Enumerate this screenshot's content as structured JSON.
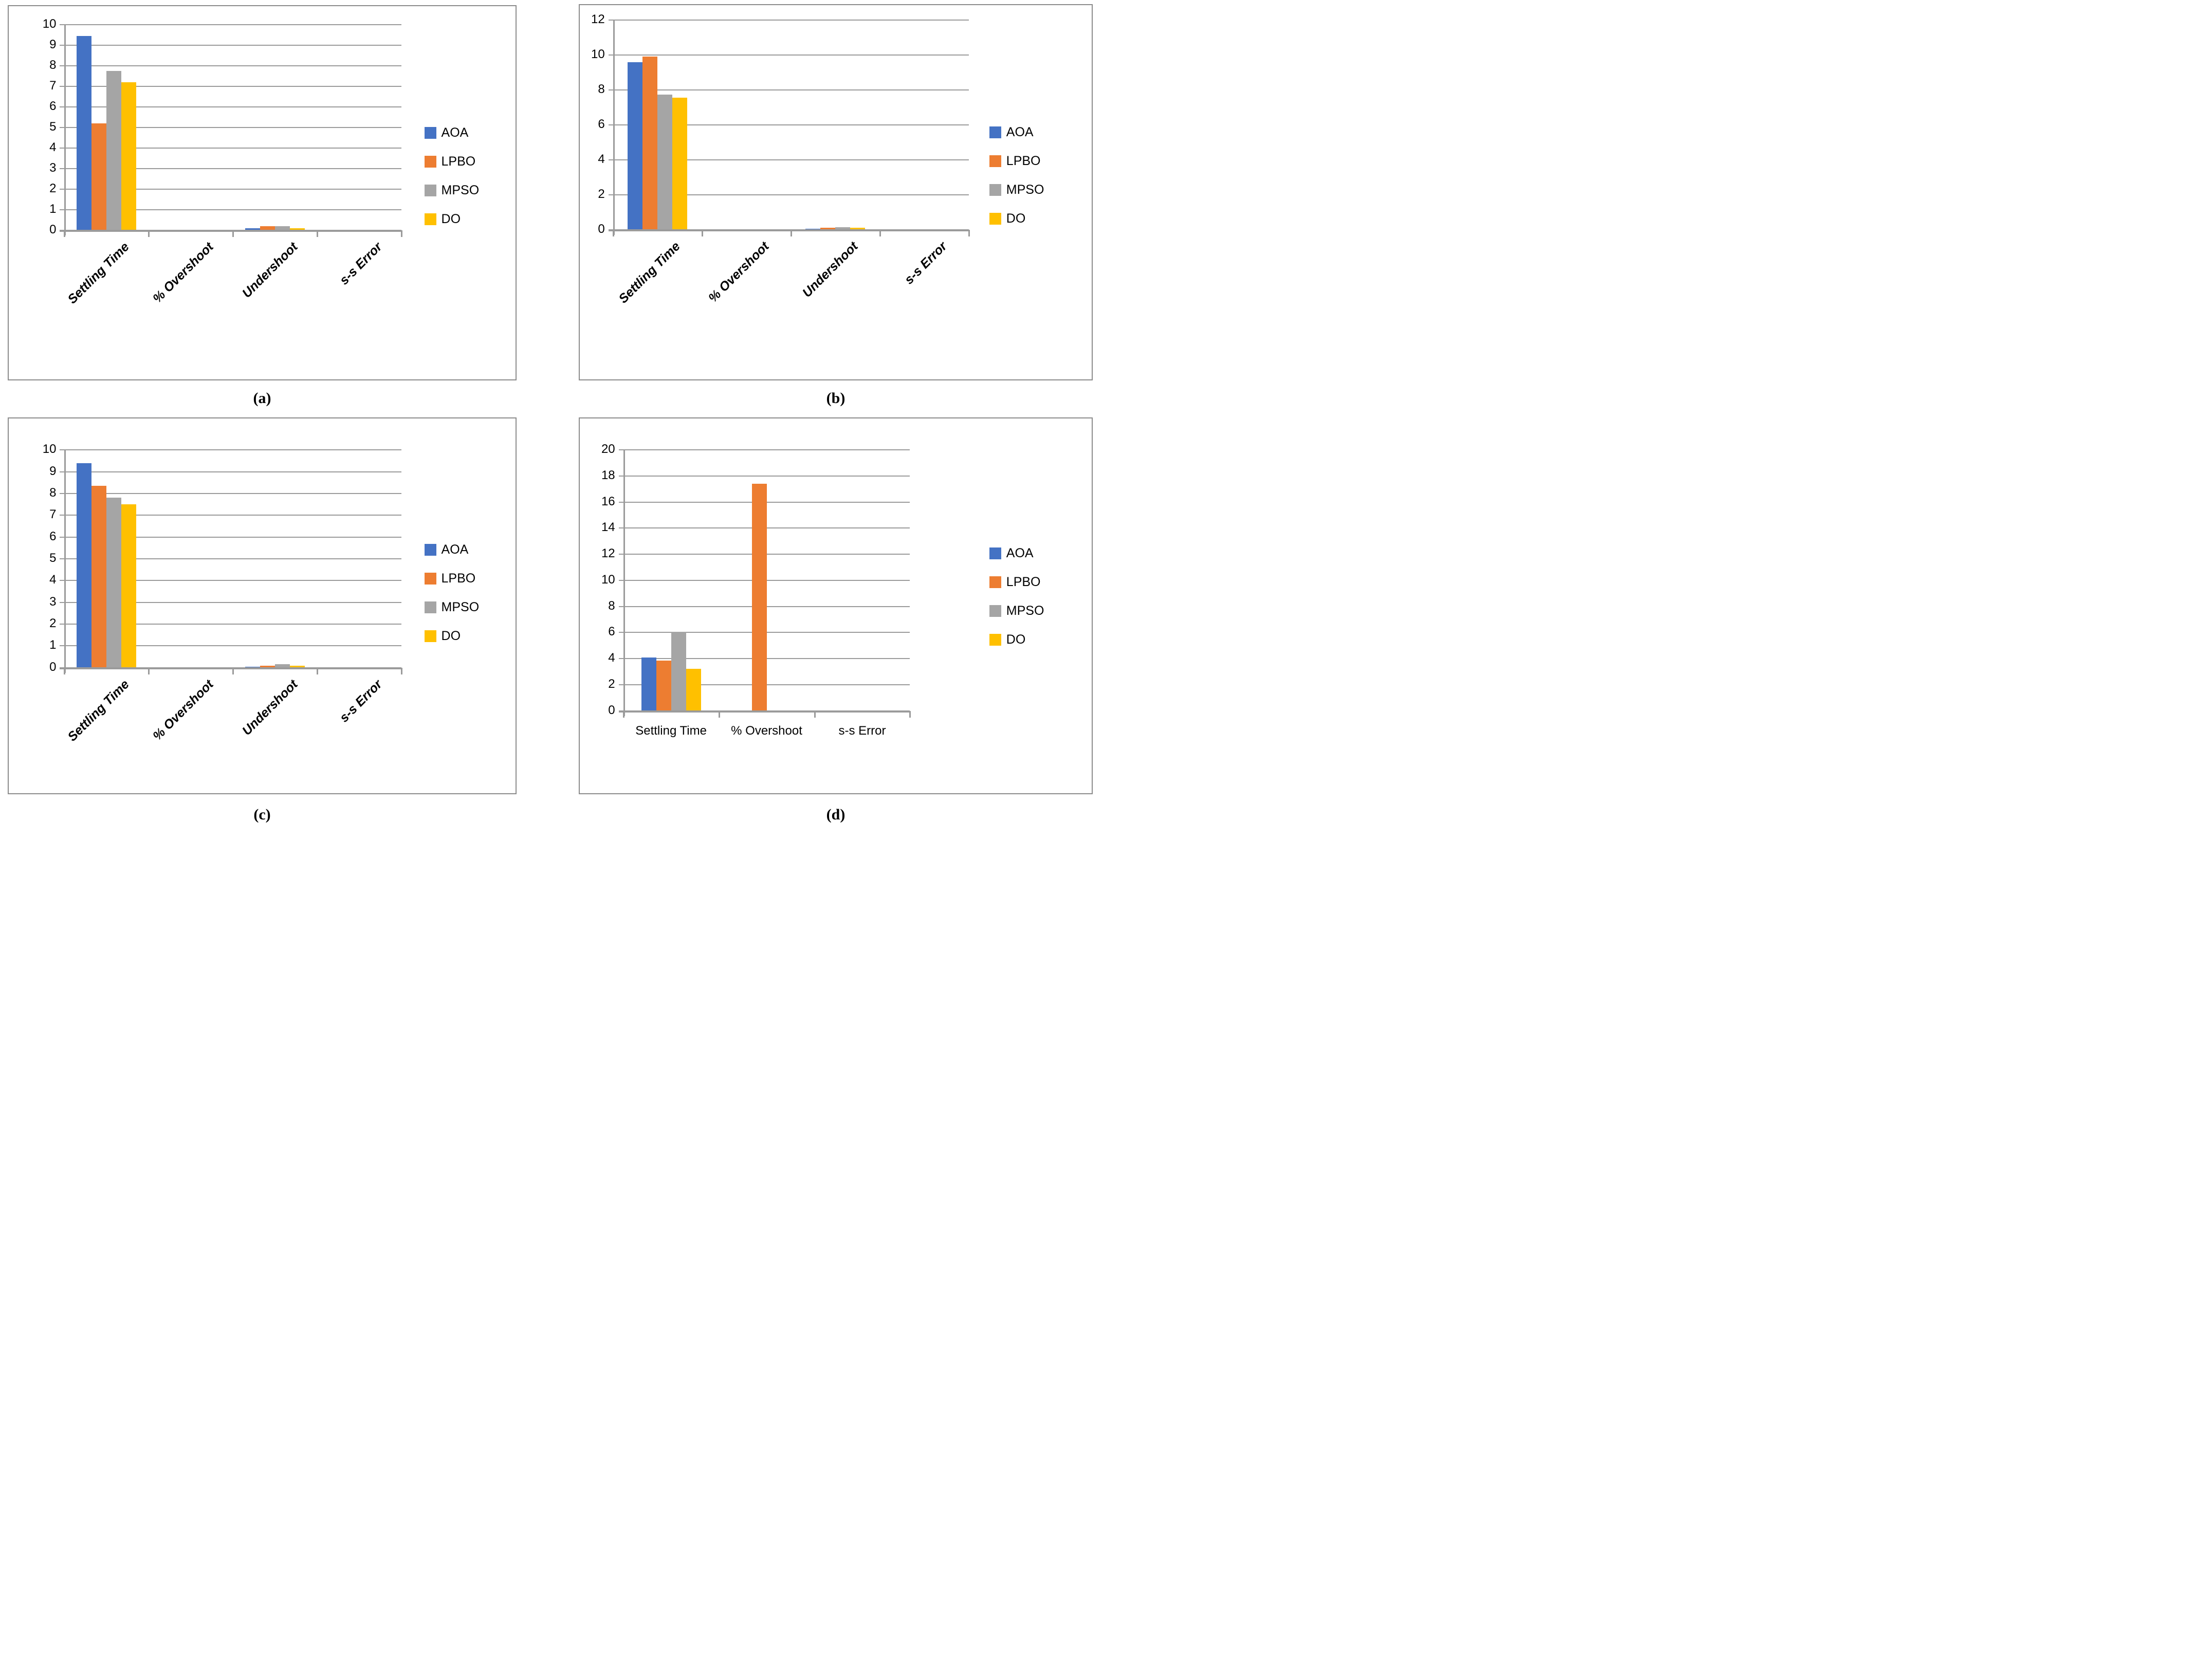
{
  "legend": [
    "AOA",
    "LPBO",
    "MPSO",
    "DO"
  ],
  "colors": {
    "AOA": "#4472C4",
    "LPBO": "#ED7D31",
    "MPSO": "#A5A5A5",
    "DO": "#FFC000"
  },
  "gridline_color": "#9b9b9b",
  "chart_data": [
    {
      "type": "bar",
      "caption": "(a)",
      "categories": [
        "Settling Time",
        "% Overshoot",
        "Undershoot",
        "s-s Error"
      ],
      "series": [
        {
          "name": "AOA",
          "values": [
            9.45,
            0,
            0.08,
            0
          ]
        },
        {
          "name": "LPBO",
          "values": [
            5.2,
            0,
            0.2,
            0
          ]
        },
        {
          "name": "MPSO",
          "values": [
            7.75,
            0,
            0.18,
            0
          ]
        },
        {
          "name": "DO",
          "values": [
            7.2,
            0,
            0.1,
            0
          ]
        }
      ],
      "ylim": [
        0,
        10
      ],
      "ystep": 1,
      "grid": true,
      "legend_position": "right",
      "xlabel_style": "rotated"
    },
    {
      "type": "bar",
      "caption": "(b)",
      "categories": [
        "Settling Time",
        "% Overshoot",
        "Undershoot",
        "s-s Error"
      ],
      "series": [
        {
          "name": "AOA",
          "values": [
            9.6,
            0,
            0.05,
            0
          ]
        },
        {
          "name": "LPBO",
          "values": [
            9.9,
            0,
            0.12,
            0
          ]
        },
        {
          "name": "MPSO",
          "values": [
            7.75,
            0,
            0.15,
            0
          ]
        },
        {
          "name": "DO",
          "values": [
            7.55,
            0,
            0.1,
            0
          ]
        }
      ],
      "ylim": [
        0,
        12
      ],
      "ystep": 2,
      "grid": true,
      "legend_position": "right",
      "xlabel_style": "rotated"
    },
    {
      "type": "bar",
      "caption": "(c)",
      "categories": [
        "Settling Time",
        "% Overshoot",
        "Undershoot",
        "s-s Error"
      ],
      "series": [
        {
          "name": "AOA",
          "values": [
            9.4,
            0,
            0.03,
            0
          ]
        },
        {
          "name": "LPBO",
          "values": [
            8.35,
            0,
            0.1,
            0
          ]
        },
        {
          "name": "MPSO",
          "values": [
            7.8,
            0,
            0.15,
            0
          ]
        },
        {
          "name": "DO",
          "values": [
            7.5,
            0,
            0.08,
            0
          ]
        }
      ],
      "ylim": [
        0,
        10
      ],
      "ystep": 1,
      "grid": true,
      "legend_position": "right",
      "xlabel_style": "rotated"
    },
    {
      "type": "bar",
      "caption": "(d)",
      "categories": [
        "Settling Time",
        "% Overshoot",
        "s-s Error"
      ],
      "series": [
        {
          "name": "AOA",
          "values": [
            4.1,
            0,
            0
          ]
        },
        {
          "name": "LPBO",
          "values": [
            3.85,
            17.4,
            0
          ]
        },
        {
          "name": "MPSO",
          "values": [
            6.05,
            0,
            0
          ]
        },
        {
          "name": "DO",
          "values": [
            3.2,
            0,
            0
          ]
        }
      ],
      "ylim": [
        0,
        20
      ],
      "ystep": 2,
      "grid": true,
      "legend_position": "right",
      "xlabel_style": "horizontal"
    }
  ]
}
